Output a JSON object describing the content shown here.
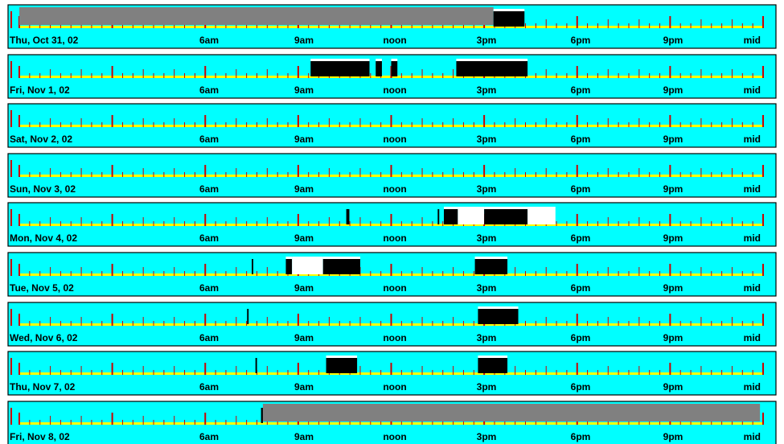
{
  "chart_data": {
    "type": "timeline",
    "time_unit": "hours",
    "x_range": [
      0,
      24
    ],
    "tick_labels": [
      {
        "hour": 6,
        "label": "6am"
      },
      {
        "hour": 9,
        "label": "9am"
      },
      {
        "hour": 12,
        "label": "noon"
      },
      {
        "hour": 15,
        "label": "3pm"
      },
      {
        "hour": 18,
        "label": "6pm"
      },
      {
        "hour": 21,
        "label": "9pm"
      },
      {
        "hour": 24,
        "label": "mid"
      }
    ],
    "colors": {
      "background": "#00ffff",
      "axis_line": "#ffff00",
      "major_tick": "#cc0000",
      "minor_tick": "#cc0000",
      "activity_dark": "#000000",
      "activity_light": "#ffffff",
      "unknown": "#808080"
    },
    "rows": [
      {
        "date": "Thu, Oct 31, 02",
        "segments": [
          {
            "start": 0.0,
            "end": 15.3,
            "kind": "unknown"
          },
          {
            "start": 15.3,
            "end": 16.3,
            "kind": "activity_dark"
          }
        ]
      },
      {
        "date": "Fri, Nov 1, 02",
        "segments": [
          {
            "start": 9.4,
            "end": 11.3,
            "kind": "activity_dark"
          },
          {
            "start": 11.5,
            "end": 11.7,
            "kind": "activity_dark"
          },
          {
            "start": 12.0,
            "end": 12.2,
            "kind": "activity_dark"
          },
          {
            "start": 14.1,
            "end": 16.4,
            "kind": "activity_dark"
          }
        ]
      },
      {
        "date": "Sat, Nov 2, 02",
        "segments": []
      },
      {
        "date": "Sun, Nov 3, 02",
        "segments": []
      },
      {
        "date": "Mon, Nov 4, 02",
        "segments": [
          {
            "start": 10.55,
            "end": 10.65,
            "kind": "activity_dark"
          },
          {
            "start": 13.5,
            "end": 13.55,
            "kind": "activity_dark"
          },
          {
            "start": 13.7,
            "end": 14.15,
            "kind": "activity_dark"
          },
          {
            "start": 14.15,
            "end": 15.0,
            "kind": "activity_light"
          },
          {
            "start": 15.0,
            "end": 16.4,
            "kind": "activity_dark"
          },
          {
            "start": 16.4,
            "end": 17.3,
            "kind": "activity_light"
          }
        ]
      },
      {
        "date": "Tue, Nov 5, 02",
        "segments": [
          {
            "start": 7.5,
            "end": 7.55,
            "kind": "activity_dark"
          },
          {
            "start": 8.6,
            "end": 8.8,
            "kind": "activity_dark"
          },
          {
            "start": 8.8,
            "end": 9.8,
            "kind": "activity_light"
          },
          {
            "start": 9.8,
            "end": 11.0,
            "kind": "activity_dark"
          },
          {
            "start": 14.7,
            "end": 15.75,
            "kind": "activity_dark"
          }
        ]
      },
      {
        "date": "Wed, Nov 6, 02",
        "segments": [
          {
            "start": 7.35,
            "end": 7.4,
            "kind": "activity_dark"
          },
          {
            "start": 14.8,
            "end": 16.1,
            "kind": "activity_dark"
          }
        ]
      },
      {
        "date": "Thu, Nov 7, 02",
        "segments": [
          {
            "start": 7.62,
            "end": 7.67,
            "kind": "activity_dark"
          },
          {
            "start": 9.9,
            "end": 10.9,
            "kind": "activity_dark"
          },
          {
            "start": 14.8,
            "end": 15.75,
            "kind": "activity_dark"
          }
        ]
      },
      {
        "date": "Fri, Nov 8, 02",
        "segments": [
          {
            "start": 7.8,
            "end": 7.86,
            "kind": "activity_dark"
          },
          {
            "start": 7.86,
            "end": 23.9,
            "kind": "unknown"
          }
        ]
      }
    ]
  }
}
